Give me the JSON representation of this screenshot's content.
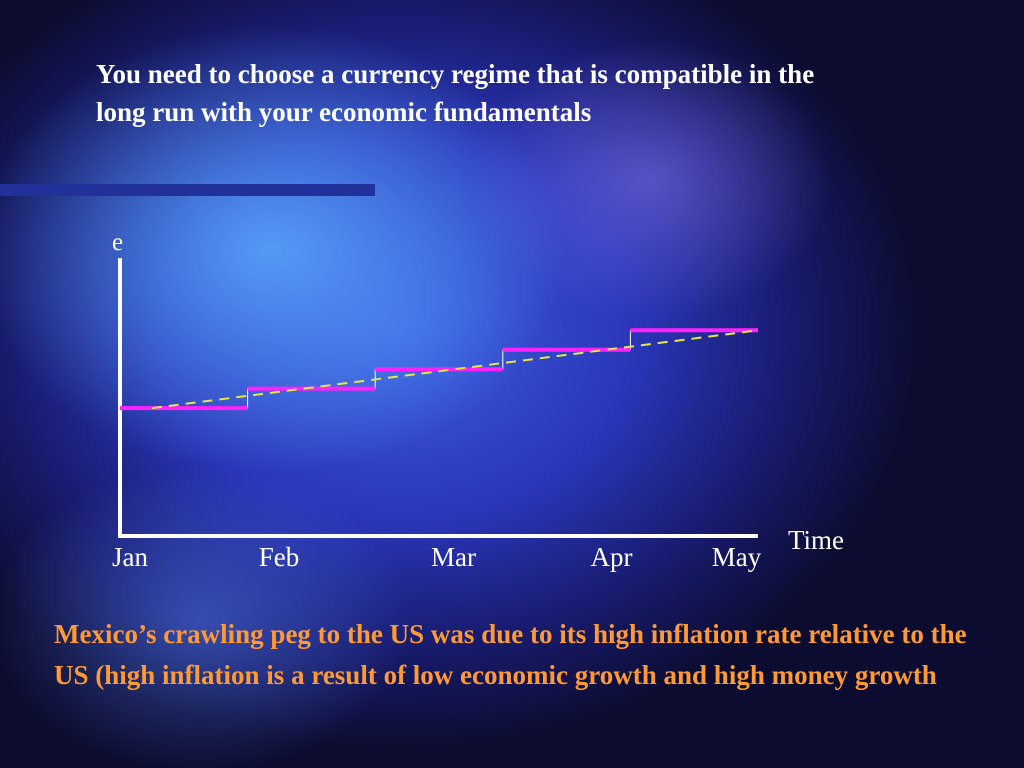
{
  "slide": {
    "title": "You need to choose a currency regime that  is compatible in the long run with your economic fundamentals",
    "footnote": "Mexico’s crawling peg to the US was due to its high inflation rate relative to the US (high inflation is a result of low economic growth and high money growth"
  },
  "colors": {
    "axis": "#ffffff",
    "peg": "#ff22ff",
    "trend": "#e6e64a",
    "connector": "#ffffff",
    "title_text": "#ffffff",
    "footnote_text": "#ff9933",
    "rule": "#22309a"
  },
  "chart_data": {
    "type": "line",
    "ylabel": "e",
    "xlabel": "Time",
    "categories": [
      "Jan",
      "Feb",
      "Mar",
      "Apr",
      "May"
    ],
    "x_range": [
      0,
      5
    ],
    "y_range": [
      0,
      1
    ],
    "series": [
      {
        "style": "step",
        "segments": [
          {
            "x0": 0,
            "x1": 1,
            "y": 0.46
          },
          {
            "x0": 1,
            "x1": 2,
            "y": 0.53
          },
          {
            "x0": 2,
            "x1": 3,
            "y": 0.6
          },
          {
            "x0": 3,
            "x1": 4,
            "y": 0.67
          },
          {
            "x0": 4,
            "x1": 5,
            "y": 0.74
          }
        ]
      },
      {
        "style": "dashed-trend",
        "points": [
          [
            0.25,
            0.46
          ],
          [
            5,
            0.74
          ]
        ]
      }
    ],
    "grid": false,
    "legend": "none"
  }
}
